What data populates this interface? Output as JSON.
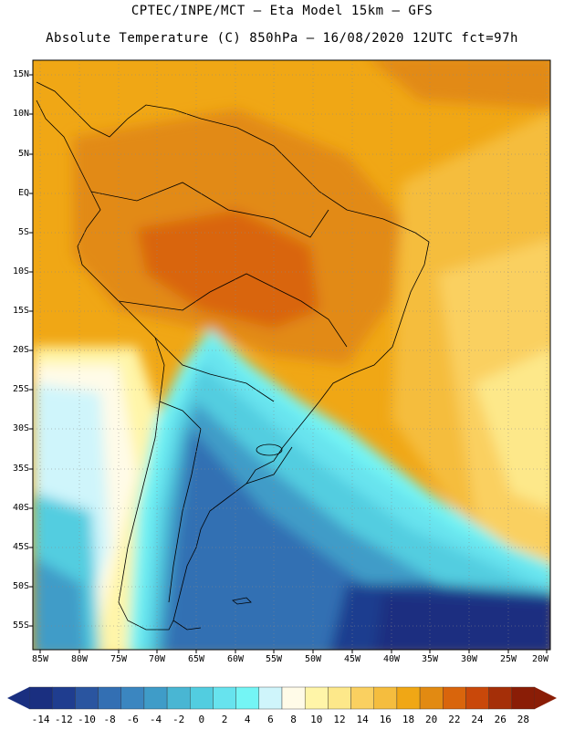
{
  "title": {
    "line1": "CPTEC/INPE/MCT –  Eta Model 15km – GFS",
    "line2": "Absolute Temperature (C) 850hPa – 16/08/2020 12UTC fct=97h"
  },
  "map": {
    "region": "South America",
    "variable": "Absolute Temperature (C) 850hPa",
    "latitude_labels": [
      "15N",
      "10N",
      "5N",
      "EQ",
      "5S",
      "10S",
      "15S",
      "20S",
      "25S",
      "30S",
      "35S",
      "40S",
      "45S",
      "50S",
      "55S"
    ],
    "longitude_labels": [
      "85W",
      "80W",
      "75W",
      "70W",
      "65W",
      "60W",
      "55W",
      "50W",
      "45W",
      "40W",
      "35W",
      "30W",
      "25W",
      "20W"
    ]
  },
  "colorbar": {
    "labels": [
      "-14",
      "-12",
      "-10",
      "-8",
      "-6",
      "-4",
      "-2",
      "0",
      "2",
      "4",
      "6",
      "8",
      "10",
      "12",
      "14",
      "16",
      "18",
      "20",
      "22",
      "24",
      "26",
      "28"
    ],
    "colors": [
      "#1a2f80",
      "#1f3d8f",
      "#2a55a0",
      "#336fb3",
      "#3b86c0",
      "#3f9cc8",
      "#49b6d3",
      "#52cde0",
      "#67e3ee",
      "#74f5f5",
      "#cff5fb",
      "#fffbe8",
      "#fff5a8",
      "#fde88a",
      "#fad060",
      "#f5bd3e",
      "#f0a715",
      "#e28a12",
      "#d9650c",
      "#c9480a",
      "#a52f08",
      "#8a1d06"
    ]
  }
}
